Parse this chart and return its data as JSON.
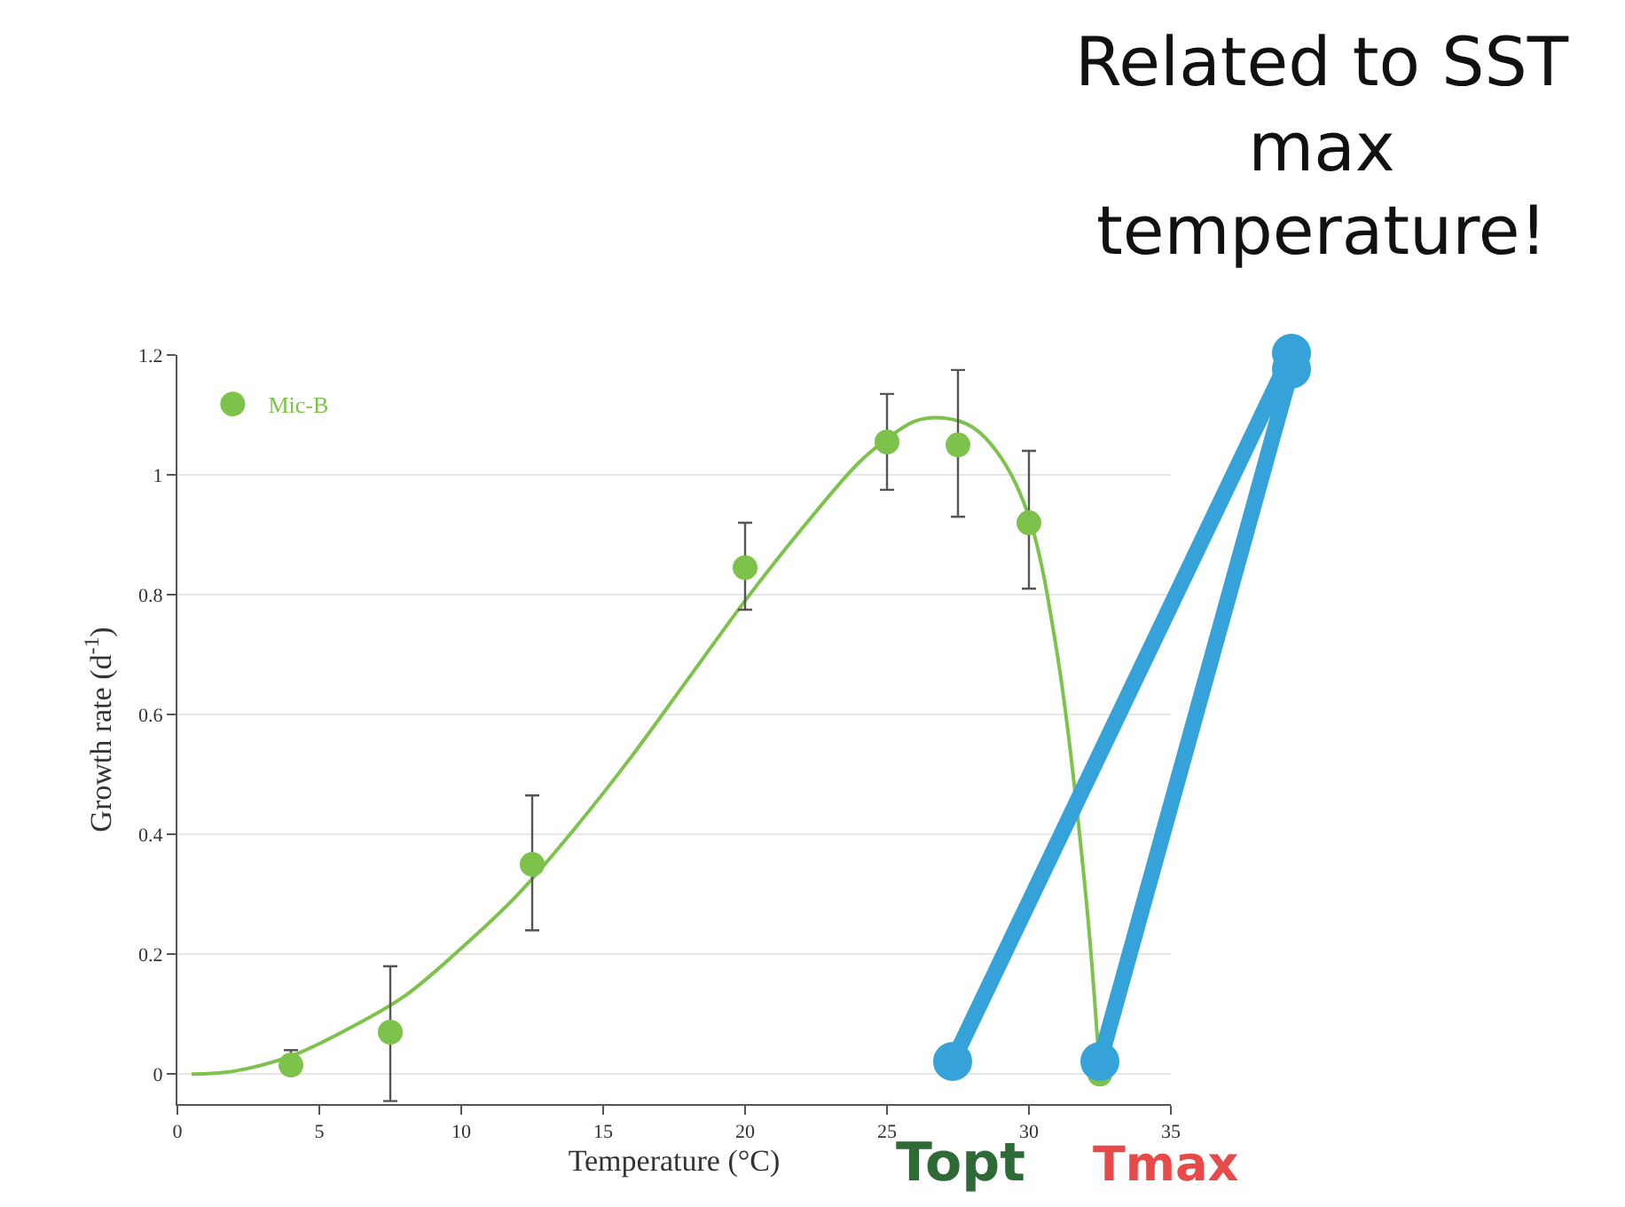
{
  "chart_data": {
    "type": "scatter",
    "xlabel": "Temperature (°C)",
    "ylabel": "Growth rate (d$^{-1}$)",
    "xlim": [
      0,
      35
    ],
    "xticks": [
      0,
      5,
      10,
      15,
      20,
      25,
      30,
      35
    ],
    "ylim": [
      -0.05,
      1.2
    ],
    "yticks": [
      0,
      0.2,
      0.4,
      0.6,
      0.8,
      1,
      1.2
    ],
    "grid": "y",
    "legend": "top left",
    "series": [
      {
        "name": "Mic-B",
        "marker": "circle",
        "color": "#7dc24b",
        "x": [
          4,
          7.5,
          12.5,
          20,
          25,
          27.5,
          30,
          32.5
        ],
        "values": [
          0.015,
          0.07,
          0.35,
          0.845,
          1.055,
          1.05,
          0.92,
          0.0
        ],
        "errors": [
          [
            0.0,
            0.04
          ],
          [
            -0.045,
            0.18
          ],
          [
            0.24,
            0.465
          ],
          [
            0.775,
            0.92
          ],
          [
            0.975,
            1.135
          ],
          [
            0.93,
            1.175
          ],
          [
            0.81,
            1.04
          ],
          null
        ]
      },
      {
        "type": "line",
        "marker": "none",
        "color": "#7dc24b",
        "line_style": "solid",
        "x": [
          0.5,
          2,
          4,
          6,
          8,
          10,
          12,
          14,
          16,
          18,
          20,
          22,
          24,
          25,
          26,
          27,
          28,
          29,
          30,
          31,
          32,
          32.5
        ],
        "values": [
          0,
          0.005,
          0.03,
          0.075,
          0.13,
          0.21,
          0.3,
          0.41,
          0.53,
          0.66,
          0.79,
          0.91,
          1.02,
          1.06,
          1.09,
          1.095,
          1.08,
          1.03,
          0.93,
          0.7,
          0.3,
          0.0
        ]
      }
    ],
    "annotations": [
      "Related to SST max temperature!",
      "Topt",
      "Tmax"
    ]
  }
}
